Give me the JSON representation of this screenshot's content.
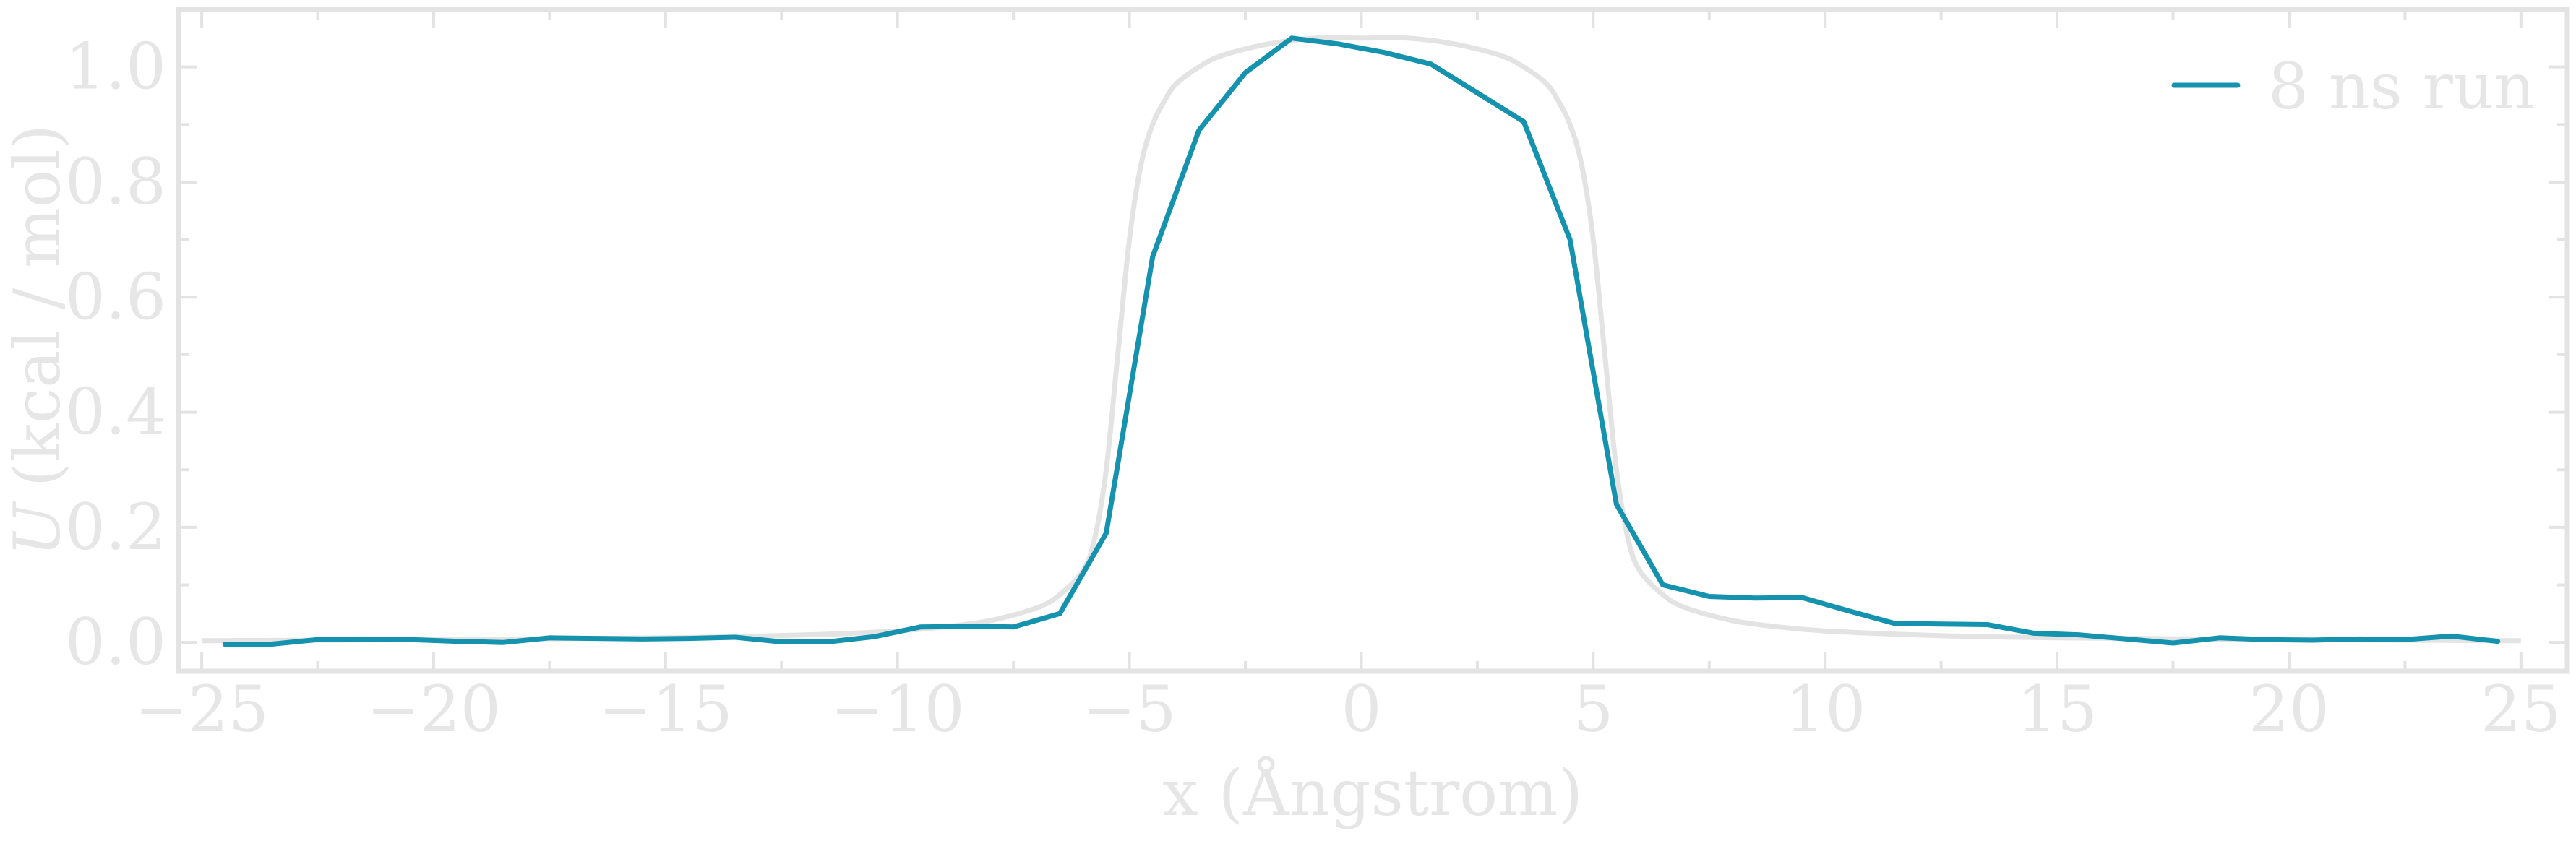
{
  "chart_data": {
    "type": "line",
    "xlabel": "x (Ångstrom)",
    "ylabel_symbol": "U",
    "ylabel_units": "(kcal / mol)",
    "xlim": [
      -25.5,
      26
    ],
    "ylim": [
      -0.05,
      1.1
    ],
    "x_ticks": [
      -25,
      -20,
      -15,
      -10,
      -5,
      0,
      5,
      10,
      15,
      20,
      25
    ],
    "x_tick_labels": [
      "−25",
      "−20",
      "−15",
      "−10",
      "−5",
      "0",
      "5",
      "10",
      "15",
      "20",
      "25"
    ],
    "y_ticks": [
      0.0,
      0.2,
      0.4,
      0.6,
      0.8,
      1.0
    ],
    "y_tick_labels": [
      "0.0",
      "0.2",
      "0.4",
      "0.6",
      "0.8",
      "1.0"
    ],
    "legend_position": "top-right",
    "series": [
      {
        "name": "8 ns run",
        "color": "#1592ad",
        "x": [
          -24.5,
          -23.5,
          -22.5,
          -21.5,
          -20.5,
          -19.5,
          -18.5,
          -17.5,
          -16.5,
          -15.5,
          -14.5,
          -13.5,
          -12.5,
          -11.5,
          -10.5,
          -9.5,
          -8.5,
          -7.5,
          -6.5,
          -5.5,
          -4.5,
          -3.5,
          -2.5,
          -1.5,
          -0.5,
          0.5,
          1.5,
          2.5,
          3.5,
          4.5,
          5.5,
          6.5,
          7.5,
          8.5,
          9.5,
          10.5,
          11.5,
          12.5,
          13.5,
          14.5,
          15.5,
          16.5,
          17.5,
          18.5,
          19.5,
          20.5,
          21.5,
          22.5,
          23.5,
          24.5
        ],
        "y": [
          -0.003,
          -0.003,
          0.005,
          0.006,
          0.005,
          0.002,
          0.0,
          0.008,
          0.007,
          0.006,
          0.007,
          0.009,
          0.001,
          0.001,
          0.01,
          0.027,
          0.028,
          0.027,
          0.05,
          0.19,
          0.67,
          0.89,
          0.99,
          1.05,
          1.04,
          1.025,
          1.005,
          0.955,
          0.905,
          0.7,
          0.24,
          0.1,
          0.08,
          0.077,
          0.078,
          0.055,
          0.033,
          0.032,
          0.031,
          0.016,
          0.013,
          0.006,
          -0.001,
          0.008,
          0.005,
          0.004,
          0.006,
          0.005,
          0.011,
          0.002
        ]
      }
    ],
    "reference_curve": {
      "color": "#e3e3e3",
      "x": [
        -25,
        -20,
        -15,
        -12,
        -10,
        -9,
        -8,
        -7,
        -6.5,
        -6,
        -5.75,
        -5.5,
        -5.25,
        -5,
        -4.75,
        -4.5,
        -4.25,
        -4,
        -3.5,
        -3,
        -2,
        -1,
        0,
        1,
        2,
        3,
        3.5,
        4,
        4.25,
        4.5,
        4.75,
        5,
        5.25,
        5.5,
        5.75,
        6,
        6.5,
        7,
        8,
        9,
        10,
        12,
        15,
        20,
        25
      ],
      "y": [
        0.003,
        0.005,
        0.008,
        0.013,
        0.02,
        0.027,
        0.038,
        0.06,
        0.083,
        0.125,
        0.18,
        0.3,
        0.5,
        0.7,
        0.83,
        0.9,
        0.94,
        0.97,
        1.0,
        1.02,
        1.04,
        1.05,
        1.05,
        1.05,
        1.04,
        1.02,
        1.0,
        0.97,
        0.94,
        0.9,
        0.83,
        0.7,
        0.5,
        0.3,
        0.18,
        0.125,
        0.083,
        0.06,
        0.038,
        0.027,
        0.02,
        0.013,
        0.008,
        0.005,
        0.003
      ]
    }
  }
}
